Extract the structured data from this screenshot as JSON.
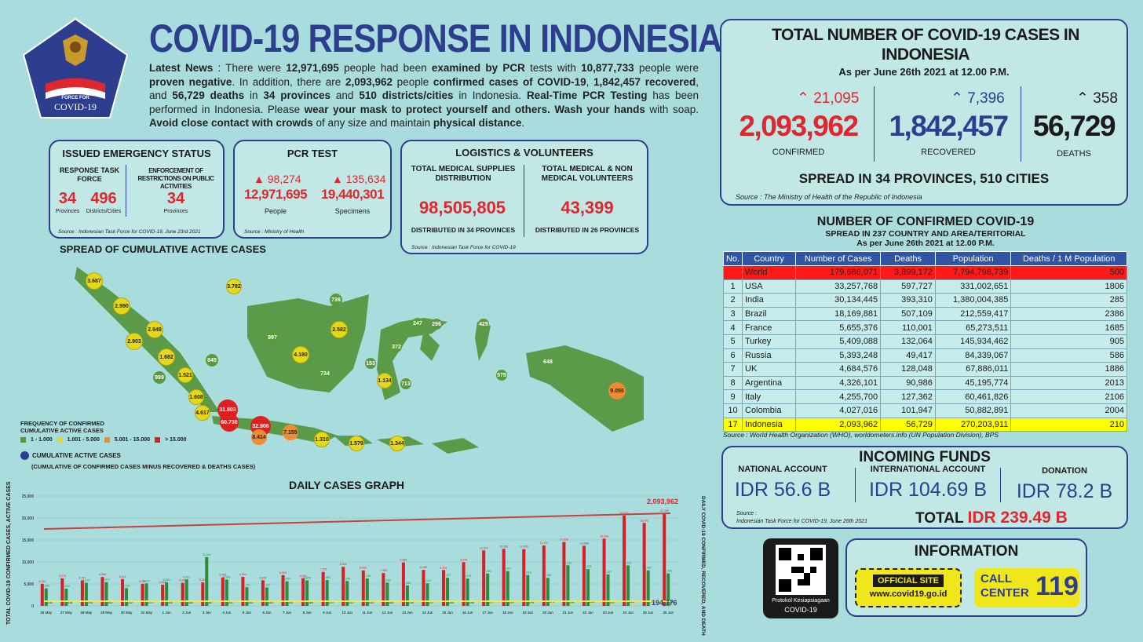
{
  "header": {
    "title": "COVID-19 RESPONSE IN INDONESIA",
    "logo_text_1": "INDONESIAN TASK",
    "logo_text_2": "FORCE FOR",
    "logo_text_3": "COVID-19"
  },
  "news": {
    "p1": "Latest News",
    "p2": " : There were ",
    "examined": "12,971,695",
    "p3": " people had been ",
    "examined_label": "examined by PCR",
    "p4": " tests with ",
    "negative": "10,877,733",
    "p5": " people were ",
    "negative_label": "proven negative",
    "p6": ". In addition, there are ",
    "confirmed": "2,093,962",
    "p7": " people ",
    "confirmed_label": "confirmed cases of COVID-19",
    "p8": ", ",
    "recovered": "1,842,457 recovered",
    "p9": ", and ",
    "deaths": "56,729 deaths",
    "p10": " in ",
    "provinces": "34 provinces",
    "p11": " and ",
    "districts": "510 districts/cities",
    "p12": " in Indonesia. ",
    "rt": "Real-Time PCR Testing",
    "p13": " has been performed in Indonesia. Please ",
    "mask": "wear your mask to protect yourself and others. Wash your hands",
    "p14": " with soap. ",
    "avoid": "Avoid close contact with crowds",
    "p15": " of any size and maintain ",
    "distance": "physical distance",
    "p16": "."
  },
  "emergency": {
    "title": "ISSUED EMERGENCY STATUS",
    "col1_label": "RESPONSE TASK FORCE",
    "col2_label": "ENFORCEMENT OF RESTRICTIONS ON PUBLIC ACTIVITIES",
    "v1": "34",
    "v1_unit": "Provinces",
    "v2": "496",
    "v2_unit": "Districts/Cities",
    "v3": "34",
    "v3_unit": "Provinces",
    "source": "Source : Indonesian Task Force for COVID-19, June 23rd 2021"
  },
  "pcr": {
    "title": "PCR TEST",
    "inc1": "98,274",
    "people": "12,971,695",
    "people_label": "People",
    "inc2": "135,634",
    "specimens": "19,440,301",
    "specimens_label": "Specimens",
    "source": "Source : Ministry of Health"
  },
  "logistics": {
    "title": "LOGISTICS & VOLUNTEERS",
    "c1_label": "TOTAL MEDICAL SUPPLIES DISTRIBUTION",
    "c1_value": "98,505,805",
    "c1_sub": "DISTRIBUTED IN 34 PROVINCES",
    "c2_label": "TOTAL MEDICAL & NON MEDICAL VOLUNTEERS",
    "c2_value": "43,399",
    "c2_sub": "DISTRIBUTED IN 26 PROVINCES",
    "source": "Source : Indonesian Task Force for COVID-19"
  },
  "totals": {
    "title": "TOTAL NUMBER OF COVID-19 CASES IN INDONESIA",
    "subtitle": "As per June 26th 2021 at 12.00 P.M.",
    "confirmed_inc": "21,095",
    "confirmed": "2,093,962",
    "confirmed_label": "CONFIRMED",
    "recovered_inc": "7,396",
    "recovered": "1,842,457",
    "recovered_label": "RECOVERED",
    "deaths_inc": "358",
    "deaths": "56,729",
    "deaths_label": "DEATHS",
    "spread": "SPREAD IN 34 PROVINCES, 510 CITIES",
    "source": "Source : The Ministry of Health of the Republic of Indonesia"
  },
  "world": {
    "title": "NUMBER OF CONFIRMED COVID-19",
    "sub1": "SPREAD IN 237 COUNTRY AND AREA/TERITORIAL",
    "sub2": "As per June 26th 2021 at 12.00 P.M.",
    "headers": [
      "No.",
      "Country",
      "Number of Cases",
      "Deaths",
      "Population",
      "Deaths / 1 M Population"
    ],
    "rows": [
      [
        "",
        "World",
        "179,686,071",
        "3,899,172",
        "7,794,798,739",
        "500"
      ],
      [
        "1",
        "USA",
        "33,257,768",
        "597,727",
        "331,002,651",
        "1806"
      ],
      [
        "2",
        "India",
        "30,134,445",
        "393,310",
        "1,380,004,385",
        "285"
      ],
      [
        "3",
        "Brazil",
        "18,169,881",
        "507,109",
        "212,559,417",
        "2386"
      ],
      [
        "4",
        "France",
        "5,655,376",
        "110,001",
        "65,273,511",
        "1685"
      ],
      [
        "5",
        "Turkey",
        "5,409,088",
        "132,064",
        "145,934,462",
        "905"
      ],
      [
        "6",
        "Russia",
        "5,393,248",
        "49,417",
        "84,339,067",
        "586"
      ],
      [
        "7",
        "UK",
        "4,684,576",
        "128,048",
        "67,886,011",
        "1886"
      ],
      [
        "8",
        "Argentina",
        "4,326,101",
        "90,986",
        "45,195,774",
        "2013"
      ],
      [
        "9",
        "Italy",
        "4,255,700",
        "127,362",
        "60,461,826",
        "2106"
      ],
      [
        "10",
        "Colombia",
        "4,027,016",
        "101,947",
        "50,882,891",
        "2004"
      ],
      [
        "17",
        "Indonesia",
        "2,093,962",
        "56,729",
        "270,203,911",
        "210"
      ]
    ],
    "source": "Source : World Health Organization (WHO), worldometers.info (UN Population Division), BPS"
  },
  "funds": {
    "title": "INCOMING FUNDS",
    "national_label": "NATIONAL ACCOUNT",
    "national": "IDR 56.6 B",
    "international_label": "INTERNATIONAL ACCOUNT",
    "international": "IDR 104.69 B",
    "donation_label": "DONATION",
    "donation": "IDR 78.2 B",
    "source1": "Source :",
    "source2": "Indonesian Task Force for COVID-19, June 26th 2021",
    "total_label": "TOTAL",
    "total": "IDR 239.49 B"
  },
  "info": {
    "qr_label1": "Protokol Kesiapsiagaan",
    "qr_label2": "COVID-19",
    "title": "INFORMATION",
    "site_label": "OFFICIAL SITE",
    "site": "www.covid19.go.id",
    "call1": "CALL",
    "call2": "CENTER",
    "call_num": "119"
  },
  "map": {
    "title": "SPREAD OF CUMULATIVE ACTIVE CASES",
    "legend_title1": "FREQUENCY OF CONFIRMED",
    "legend_title2": "CUMULATIVE ACTIVE CASES",
    "legend": [
      "1 - 1.000",
      "1.001 - 5.000",
      "5.001 - 15.000",
      "> 15.000"
    ],
    "cum_label": "CUMULATIVE ACTIVE CASES",
    "cum_sub": "(CUMULATIVE OF CONFIRMED CASES MINUS RECOVERED & DEATHS CASES)",
    "dots": [
      {
        "v": "3.687",
        "c": "y"
      },
      {
        "v": "3.782",
        "c": "y"
      },
      {
        "v": "2.990",
        "c": "y"
      },
      {
        "v": "2.948",
        "c": "y"
      },
      {
        "v": "2.903",
        "c": "y"
      },
      {
        "v": "1.682",
        "c": "y"
      },
      {
        "v": "845",
        "c": "g"
      },
      {
        "v": "1.521",
        "c": "y"
      },
      {
        "v": "999",
        "c": "g"
      },
      {
        "v": "1.608",
        "c": "y"
      },
      {
        "v": "4.617",
        "c": "y"
      },
      {
        "v": "31.803",
        "c": "r"
      },
      {
        "v": "60.736",
        "c": "r"
      },
      {
        "v": "32.906",
        "c": "r"
      },
      {
        "v": "8.414",
        "c": "o"
      },
      {
        "v": "7.155",
        "c": "o"
      },
      {
        "v": "1.310",
        "c": "y"
      },
      {
        "v": "1.579",
        "c": "y"
      },
      {
        "v": "1.344",
        "c": "y"
      },
      {
        "v": "736",
        "c": "g"
      },
      {
        "v": "997",
        "c": "g"
      },
      {
        "v": "4.180",
        "c": "y"
      },
      {
        "v": "2.582",
        "c": "y"
      },
      {
        "v": "734",
        "c": "g"
      },
      {
        "v": "247",
        "c": "g"
      },
      {
        "v": "296",
        "c": "g"
      },
      {
        "v": "425",
        "c": "g"
      },
      {
        "v": "372",
        "c": "g"
      },
      {
        "v": "153",
        "c": "g"
      },
      {
        "v": "1.134",
        "c": "y"
      },
      {
        "v": "713",
        "c": "g"
      },
      {
        "v": "648",
        "c": "g"
      },
      {
        "v": "575",
        "c": "g"
      },
      {
        "v": "9.055",
        "c": "o"
      }
    ]
  },
  "graph": {
    "title": "DAILY CASES GRAPH",
    "ylabel_left": "TOTAL COVID-19 CONFIRMED CASES, ACTIVE CASES",
    "ylabel_right": "DAILY COVID-19 CONFIRMED, RECOVERED, AND DEATH",
    "total_label": "2,093,962",
    "active_label": "194,776"
  },
  "chart_data": {
    "type": "bar",
    "title": "DAILY CASES GRAPH",
    "categories": [
      "26 May",
      "27 May",
      "28 May",
      "29 May",
      "30 May",
      "31 May",
      "1 Jun",
      "2 Jun",
      "3 Jun",
      "4 Jun",
      "5 Jun",
      "6 Jun",
      "7 Jun",
      "8 Jun",
      "9 Jun",
      "10 Jun",
      "11 Jun",
      "12 Jun",
      "13 Jun",
      "14 Jun",
      "15 Jun",
      "16 Jun",
      "17 Jun",
      "18 Jun",
      "19 Jun",
      "20 Jun",
      "21 Jun",
      "22 Jun",
      "23 Jun",
      "24 Jun",
      "25 Jun",
      "26 Jun"
    ],
    "ylim": [
      0,
      25000
    ],
    "series": [
      {
        "values": [
          5034,
          6278,
          5797,
          6565,
          6115,
          5040,
          4824,
          5246,
          5353,
          6486,
          6594,
          5832,
          6993,
          6294,
          7725,
          8892,
          8083,
          7465,
          9868,
          8189,
          8161,
          9944,
          12624,
          12990,
          12906,
          13737,
          14536,
          13668,
          15308,
          20574,
          18872,
          21095
        ]
      },
      {
        "values": [
          3985,
          3934,
          5270,
          5417,
          4024,
          5121,
          5360,
          6022,
          11092,
          5990,
          4241,
          4187,
          5594,
          5805,
          5883,
          5661,
          6230,
          5292,
          4655,
          5143,
          6407,
          6229,
          7350,
          7907,
          7016,
          6385,
          9233,
          8375,
          7167,
          9201,
          8087,
          7396
        ]
      },
      {
        "values": [
          144,
          136,
          193,
          162,
          142,
          174,
          145,
          185,
          187,
          201,
          153,
          163,
          191,
          189,
          170,
          211,
          153,
          164,
          149,
          237,
          164,
          196,
          277,
          290,
          248,
          371,
          294,
          335,
          303,
          355,
          422,
          358
        ]
      }
    ]
  }
}
